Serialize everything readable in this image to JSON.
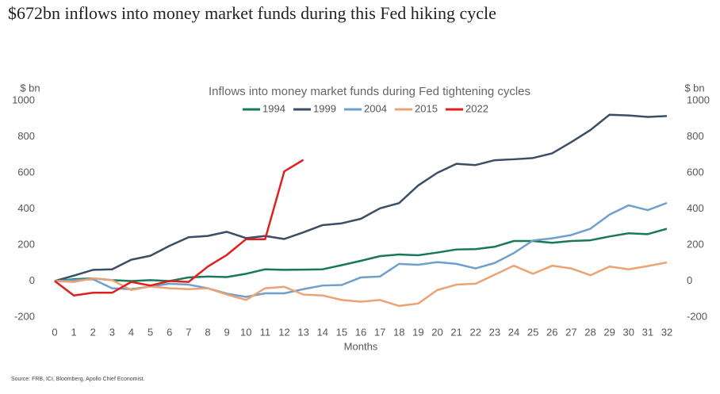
{
  "chart_data": {
    "type": "line",
    "headline": "$672bn inflows into money market funds during this Fed hiking cycle",
    "title": "Inflows into money market funds during Fed tightening cycles",
    "ylabel": "$ bn",
    "y2label": "$ bn",
    "xlabel": "Months",
    "source": "Source: FRB, ICI, Bloomberg, Apollo Chief Economist.",
    "x": [
      0,
      1,
      2,
      3,
      4,
      5,
      6,
      7,
      8,
      9,
      10,
      11,
      12,
      13,
      14,
      15,
      16,
      17,
      18,
      19,
      20,
      21,
      22,
      23,
      24,
      25,
      26,
      27,
      28,
      29,
      30,
      31,
      32
    ],
    "xlim": [
      0,
      32
    ],
    "xticks": [
      0,
      1,
      2,
      3,
      4,
      5,
      6,
      7,
      8,
      9,
      10,
      11,
      12,
      13,
      14,
      15,
      16,
      17,
      18,
      19,
      20,
      21,
      22,
      23,
      24,
      25,
      26,
      27,
      28,
      29,
      30,
      31,
      32
    ],
    "ylim": [
      -200,
      1000
    ],
    "yticks": [
      -200,
      0,
      200,
      400,
      600,
      800,
      1000
    ],
    "y2lim": [
      -200,
      1000
    ],
    "y2ticks": [
      -200,
      0,
      200,
      400,
      600,
      800,
      1000
    ],
    "legend": "top",
    "series": [
      {
        "name": "1994",
        "color": "#17795a",
        "values": [
          0,
          10,
          15,
          5,
          0,
          5,
          0,
          20,
          25,
          22,
          40,
          65,
          62,
          63,
          65,
          88,
          112,
          138,
          147,
          143,
          158,
          175,
          177,
          190,
          222,
          222,
          212,
          222,
          226,
          247,
          265,
          260,
          290
        ]
      },
      {
        "name": "1999",
        "color": "#3b4e66",
        "values": [
          0,
          30,
          62,
          65,
          118,
          140,
          195,
          243,
          250,
          273,
          238,
          250,
          233,
          270,
          310,
          320,
          345,
          403,
          432,
          530,
          600,
          650,
          643,
          670,
          675,
          682,
          708,
          770,
          837,
          922,
          918,
          910,
          915
        ]
      },
      {
        "name": "2004",
        "color": "#6f9fcc",
        "values": [
          0,
          5,
          10,
          -40,
          -45,
          -30,
          -15,
          -20,
          -40,
          -70,
          -88,
          -68,
          -68,
          -45,
          -25,
          -22,
          20,
          25,
          95,
          90,
          105,
          95,
          70,
          100,
          155,
          225,
          237,
          255,
          290,
          368,
          420,
          393,
          433
        ]
      },
      {
        "name": "2015",
        "color": "#eba374",
        "values": [
          0,
          -5,
          15,
          5,
          -50,
          -30,
          -40,
          -45,
          -40,
          -75,
          -105,
          -40,
          -32,
          -75,
          -80,
          -105,
          -115,
          -105,
          -138,
          -125,
          -50,
          -20,
          -15,
          35,
          85,
          40,
          85,
          70,
          32,
          80,
          65,
          83,
          103
        ]
      },
      {
        "name": "2022",
        "color": "#e0201e",
        "values": [
          0,
          -80,
          -65,
          -65,
          -5,
          -25,
          0,
          -5,
          80,
          145,
          232,
          232,
          608,
          672,
          null,
          null,
          null,
          null,
          null,
          null,
          null,
          null,
          null,
          null,
          null,
          null,
          null,
          null,
          null,
          null,
          null,
          null,
          null
        ]
      }
    ]
  }
}
